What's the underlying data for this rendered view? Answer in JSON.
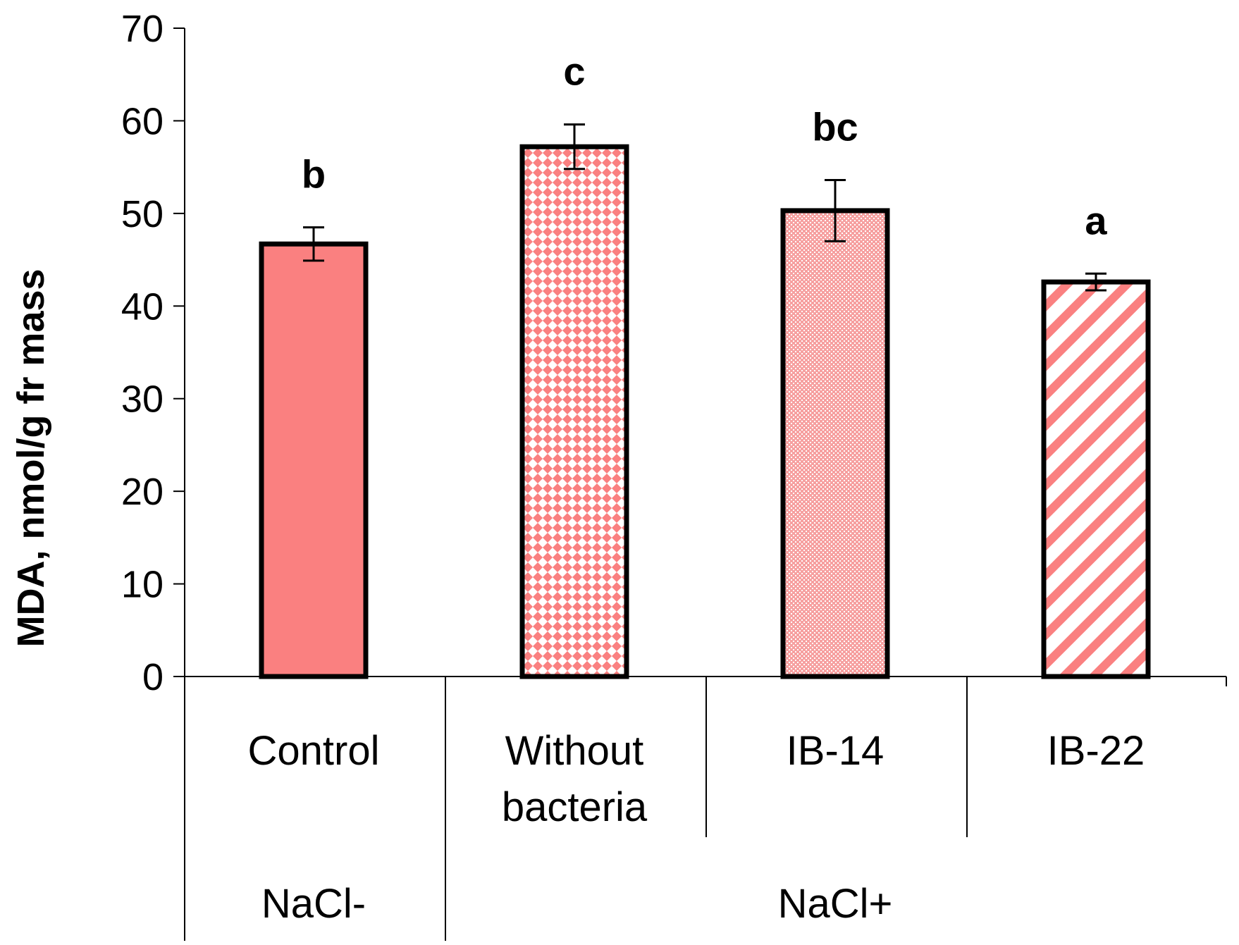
{
  "chart_data": {
    "type": "bar",
    "title": "",
    "xlabel": "",
    "ylabel": "MDA, nmol/g fr mass",
    "ylim": [
      0,
      70
    ],
    "yticks": [
      0,
      10,
      20,
      30,
      40,
      50,
      60,
      70
    ],
    "grid": false,
    "bar_color": "#fa8080",
    "categories": [
      {
        "lines": [
          "Control"
        ]
      },
      {
        "lines": [
          "Without",
          "bacteria"
        ]
      },
      {
        "lines": [
          "IB-14"
        ]
      },
      {
        "lines": [
          "IB-22"
        ]
      }
    ],
    "values": [
      46.7,
      57.2,
      50.3,
      42.6
    ],
    "errors": [
      1.8,
      2.4,
      3.3,
      0.9
    ],
    "significance": [
      "b",
      "c",
      "bc",
      "a"
    ],
    "patterns": [
      "solid",
      "diamond",
      "dots",
      "diagonal"
    ],
    "groups": [
      {
        "label": "NaCl-",
        "span": [
          0,
          0
        ]
      },
      {
        "label": "NaCl+",
        "span": [
          1,
          3
        ]
      }
    ]
  }
}
